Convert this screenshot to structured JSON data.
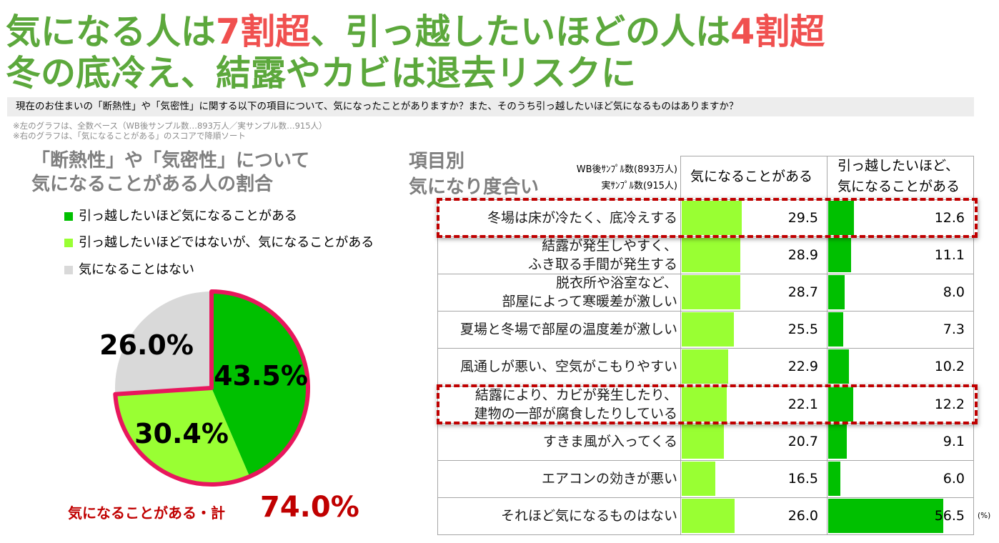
{
  "title": {
    "line1": [
      "気になる人は",
      "7割超",
      "、引っ越したいほどの人は",
      "4割超"
    ],
    "line2": "冬の底冷え、結露やカビは退去リスクに"
  },
  "question": "現在のお住まいの「断熱性」や「気密性」に関する以下の項目について、気になったことがありますか？また、そのうち引っ越したいほど気になるものはありますか？",
  "notes": [
    "※左のグラフは、全数ベース（WB後サンプル数…893万人／実サンプル数…915人）",
    "※右のグラフは、「気になることがある」のスコアで降順ソート"
  ],
  "colors": {
    "title_green": "#5CA83C",
    "title_accent": "#F0504F",
    "heading_gray": "#7F7F7F",
    "total_red": "#C00000",
    "question_bg": "#EDEDED",
    "gridline": "#A6A6A6"
  },
  "chart_data": [
    {
      "type": "pie",
      "title_lines": [
        "「断熱性」や「気密性」について",
        "気になることがある人の割合"
      ],
      "legend_position": "top-left",
      "slices": [
        {
          "label": "引っ越したいほど気になることがある",
          "value": 43.5,
          "value_label": "43.5%",
          "color": "#00C000"
        },
        {
          "label": "引っ越したいほどではないが、気になることがある",
          "value": 30.4,
          "value_label": "30.4%",
          "color": "#99FF33"
        },
        {
          "label": "気になることはない",
          "value": 26.0,
          "value_label": "26.0%",
          "color": "#D9D9D9"
        }
      ],
      "outlined_slices": [
        0,
        1
      ],
      "outline_color": "#E8175D",
      "total": {
        "label": "気になることがある・計",
        "value_label": "74.0%"
      }
    },
    {
      "type": "bar",
      "orientation": "horizontal",
      "title_lines": [
        "項目別",
        "気になり度合い"
      ],
      "sample_size_lines": [
        "WB後ｻﾝﾌﾟﾙ数(893万人)",
        "実ｻﾝﾌﾟﾙ数(915人)"
      ],
      "categories": [
        "冬場は床が冷たく、底冷えする",
        "結露が発生しやすく、\nふき取る手間が発生する",
        "脱衣所や浴室など、\n部屋によって寒暖差が激しい",
        "夏場と冬場で部屋の温度差が激しい",
        "風通しが悪い、空気がこもりやすい",
        "結露により、カビが発生したり、\n建物の一部が腐食したりしている",
        "すきま風が入ってくる",
        "エアコンの効きが悪い",
        "それほど気になるものはない"
      ],
      "series": [
        {
          "name": "気になることがある",
          "color": "#99FF33",
          "values": [
            29.5,
            28.9,
            28.7,
            25.5,
            22.9,
            22.1,
            20.7,
            16.5,
            26.0
          ]
        },
        {
          "name": "引っ越したいほど、\n気になることがある",
          "color": "#00C000",
          "values": [
            12.6,
            11.1,
            8.0,
            7.3,
            10.2,
            12.2,
            9.1,
            6.0,
            56.5
          ]
        }
      ],
      "unit": "(%)",
      "highlighted_rows": [
        0,
        5
      ],
      "highlight_color": "#C00000"
    }
  ]
}
